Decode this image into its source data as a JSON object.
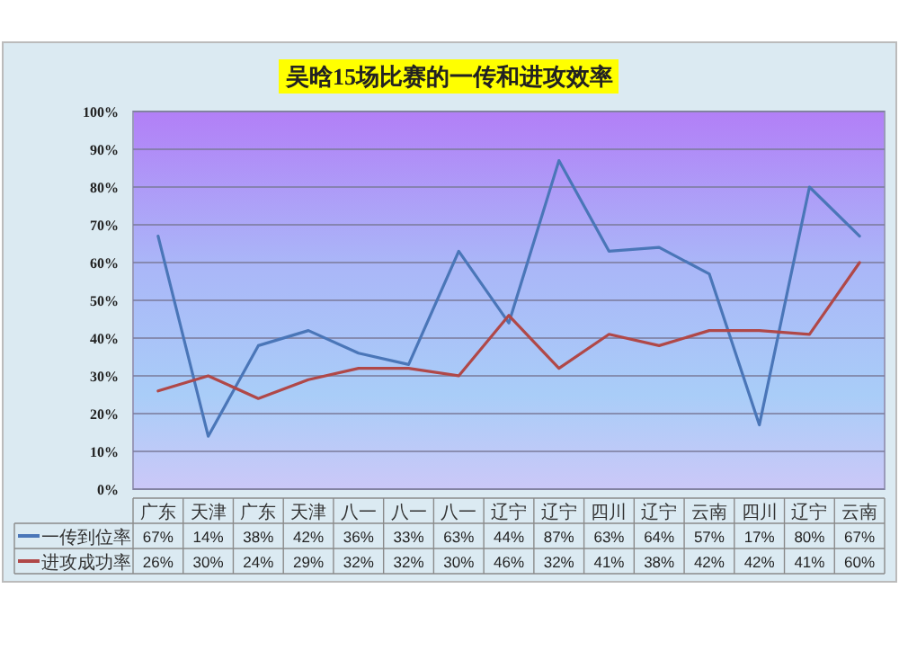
{
  "chart_data": {
    "type": "line",
    "title": "吴晗15场比赛的一传和进攻效率",
    "categories": [
      "广东",
      "天津",
      "广东",
      "天津",
      "八一",
      "八一",
      "八一",
      "辽宁",
      "辽宁",
      "四川",
      "辽宁",
      "云南",
      "四川",
      "辽宁",
      "云南"
    ],
    "series": [
      {
        "name": "一传到位率",
        "color": "#4a76b8",
        "values": [
          67,
          14,
          38,
          42,
          36,
          33,
          63,
          44,
          87,
          63,
          64,
          57,
          17,
          80,
          67
        ],
        "value_labels": [
          "67%",
          "14%",
          "38%",
          "42%",
          "36%",
          "33%",
          "63%",
          "44%",
          "87%",
          "63%",
          "64%",
          "57%",
          "17%",
          "80%",
          "67%"
        ]
      },
      {
        "name": "进攻成功率",
        "color": "#b04848",
        "values": [
          26,
          30,
          24,
          29,
          32,
          32,
          30,
          46,
          32,
          41,
          38,
          42,
          42,
          41,
          60
        ],
        "value_labels": [
          "26%",
          "30%",
          "24%",
          "29%",
          "32%",
          "32%",
          "30%",
          "46%",
          "32%",
          "41%",
          "38%",
          "42%",
          "42%",
          "41%",
          "60%"
        ]
      }
    ],
    "ylim": [
      0,
      100
    ],
    "yticks": [
      {
        "value": 0,
        "label": "0%"
      },
      {
        "value": 10,
        "label": "10%"
      },
      {
        "value": 20,
        "label": "20%"
      },
      {
        "value": 30,
        "label": "30%"
      },
      {
        "value": 40,
        "label": "40%"
      },
      {
        "value": 50,
        "label": "50%"
      },
      {
        "value": 60,
        "label": "60%"
      },
      {
        "value": 70,
        "label": "70%"
      },
      {
        "value": 80,
        "label": "80%"
      },
      {
        "value": 90,
        "label": "90%"
      },
      {
        "value": 100,
        "label": "100%"
      }
    ],
    "grid": "y",
    "legend": "bottom left",
    "marker": "none",
    "line_style": "solid"
  }
}
